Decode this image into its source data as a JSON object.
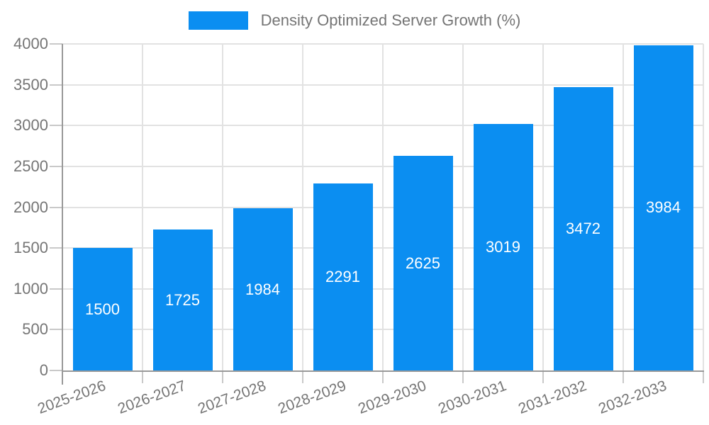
{
  "legend": {
    "position": "top"
  },
  "axes": {
    "y_tick_labels": [
      "0",
      "500",
      "1000",
      "1500",
      "2000",
      "2500",
      "3000",
      "3500",
      "4000"
    ],
    "x_tick_labels": [
      "2025-2026",
      "2026-2027",
      "2027-2028",
      "2028-2029",
      "2029-2030",
      "2030-2031",
      "2031-2032",
      "2032-2033"
    ]
  },
  "chart_data": {
    "type": "bar",
    "title": "",
    "xlabel": "",
    "ylabel": "",
    "categories": [
      "2025-2026",
      "2026-2027",
      "2027-2028",
      "2028-2029",
      "2029-2030",
      "2030-2031",
      "2031-2032",
      "2032-2033"
    ],
    "series": [
      {
        "name": "Density Optimized Server Growth (%)",
        "values": [
          1500,
          1725,
          1984,
          2291,
          2625,
          3019,
          3472,
          3984
        ]
      }
    ],
    "bar_value_labels": [
      "1500",
      "1725",
      "1984",
      "2291",
      "2625",
      "3019",
      "3472",
      "3984"
    ],
    "ylim": [
      0,
      4000
    ],
    "ytick_step": 500,
    "grid": true,
    "legend_position": "top",
    "colors": {
      "bar": "#0B8EF1",
      "grid": "#E2E2E2",
      "axis": "#999999",
      "tick_mark": "#C9C9C9",
      "tick_text": "#757575",
      "value_text": "#FFFFFF",
      "background": "#FFFFFF"
    }
  }
}
